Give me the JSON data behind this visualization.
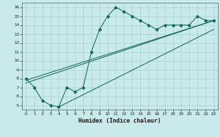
{
  "xlabel": "Humidex (Indice chaleur)",
  "bg_color": "#c8eaea",
  "grid_color": "#a8cece",
  "line_color": "#1a6b5a",
  "xlim": [
    -0.5,
    23.5
  ],
  "ylim": [
    4.5,
    16.5
  ],
  "xticks": [
    0,
    1,
    2,
    3,
    4,
    5,
    6,
    7,
    8,
    9,
    10,
    11,
    12,
    13,
    14,
    15,
    16,
    17,
    18,
    19,
    20,
    21,
    22,
    23
  ],
  "yticks": [
    5,
    6,
    7,
    8,
    9,
    10,
    11,
    12,
    13,
    14,
    15,
    16
  ],
  "line1_x": [
    0,
    1,
    2,
    3,
    4,
    5,
    6,
    7,
    8,
    9,
    10,
    11,
    12,
    13,
    14,
    15,
    16,
    17,
    18,
    19,
    20,
    21,
    22,
    23
  ],
  "line1_y": [
    8.0,
    7.0,
    5.5,
    5.0,
    4.8,
    7.0,
    6.5,
    7.0,
    11.0,
    13.5,
    15.0,
    16.0,
    15.5,
    15.0,
    14.5,
    14.0,
    13.5,
    14.0,
    14.0,
    14.0,
    14.0,
    15.0,
    14.5,
    14.5
  ],
  "line2_x": [
    0,
    23
  ],
  "line2_y": [
    7.5,
    14.5
  ],
  "line3_x": [
    0,
    23
  ],
  "line3_y": [
    7.8,
    14.5
  ],
  "line4_x": [
    4,
    23
  ],
  "line4_y": [
    4.8,
    13.5
  ]
}
